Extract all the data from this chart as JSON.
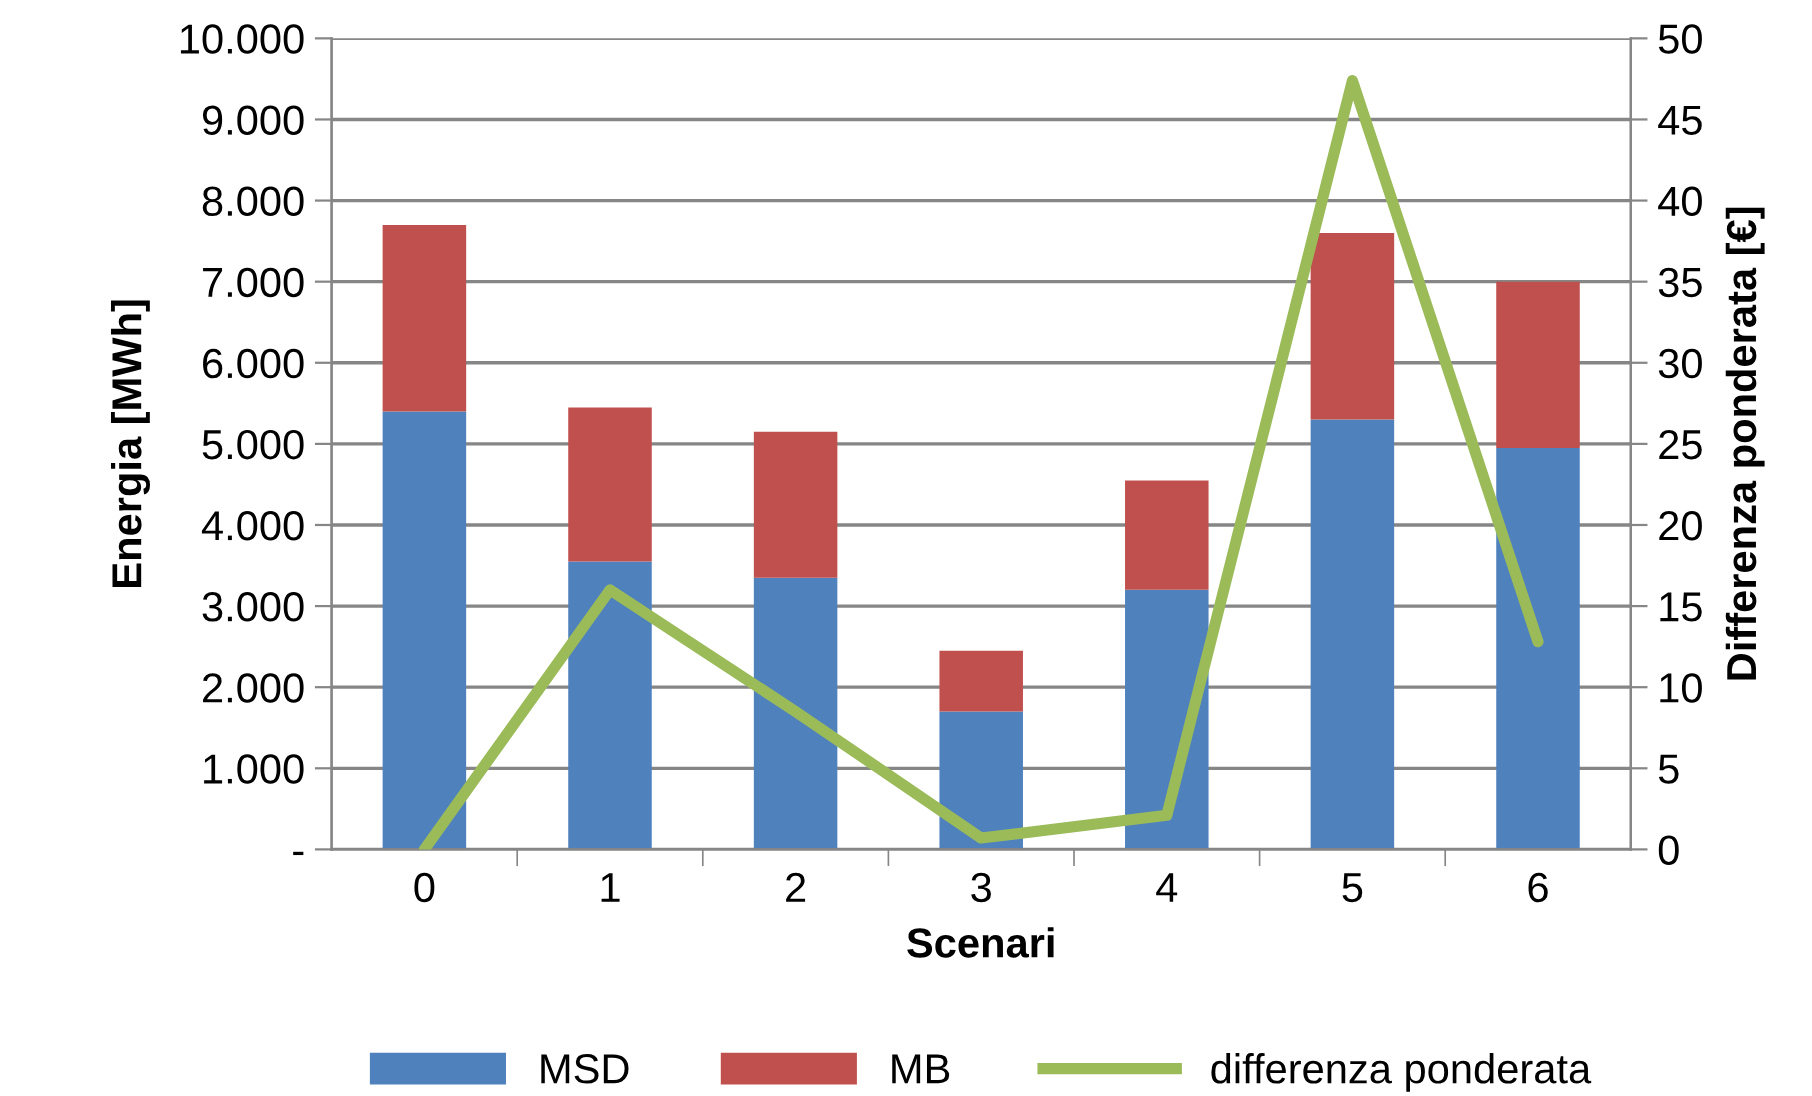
{
  "chart_data": {
    "type": "bar",
    "stacked": true,
    "xlabel": "Scenari",
    "ylabel": "Energia [MWh]",
    "y2label": "Differenza ponderata [€]",
    "categories": [
      "0",
      "1",
      "2",
      "3",
      "4",
      "5",
      "6"
    ],
    "series": [
      {
        "name": "MSD",
        "color": "#4f81bd",
        "values": [
          5400,
          3550,
          3350,
          1700,
          3200,
          5300,
          4950
        ]
      },
      {
        "name": "MB",
        "color": "#c0504d",
        "values": [
          2300,
          1900,
          1800,
          750,
          1350,
          2300,
          2050
        ]
      },
      {
        "name": "differenza ponderata",
        "type": "line",
        "axis": "y2",
        "color": "#9bbb59",
        "values": [
          0,
          16.0,
          8.5,
          0.7,
          2.1,
          47.4,
          12.8
        ]
      }
    ],
    "ylim": [
      0,
      10000
    ],
    "yticks": [
      {
        "value": 0,
        "label": "-"
      },
      {
        "value": 1000,
        "label": "1.000"
      },
      {
        "value": 2000,
        "label": "2.000"
      },
      {
        "value": 3000,
        "label": "3.000"
      },
      {
        "value": 4000,
        "label": "4.000"
      },
      {
        "value": 5000,
        "label": "5.000"
      },
      {
        "value": 6000,
        "label": "6.000"
      },
      {
        "value": 7000,
        "label": "7.000"
      },
      {
        "value": 8000,
        "label": "8.000"
      },
      {
        "value": 9000,
        "label": "9.000"
      },
      {
        "value": 10000,
        "label": "10.000"
      }
    ],
    "y2lim": [
      0,
      50
    ],
    "y2ticks": [
      0,
      5,
      10,
      15,
      20,
      25,
      30,
      35,
      40,
      45,
      50
    ],
    "grid": "y",
    "legend": "bottom",
    "marker": "none",
    "line_style": "solid"
  }
}
